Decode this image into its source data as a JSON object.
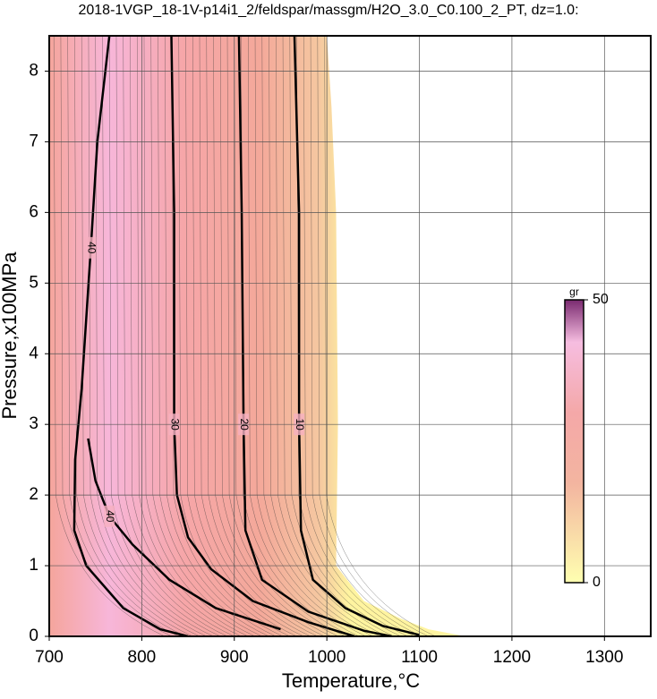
{
  "chart_data": {
    "type": "contour",
    "title": "2018-1VGP_18-1V-p14i1_2/feldspar/massgm/H2O_3.0_C0.100_2_PT, dz=1.0:",
    "x_label": "Temperature,°C",
    "y_label": "Pressure,x100MPa",
    "xlim": [
      700,
      1350
    ],
    "ylim": [
      0,
      8.5
    ],
    "xticks": [
      700,
      800,
      900,
      1000,
      1100,
      1200,
      1300
    ],
    "yticks": [
      0,
      1,
      2,
      3,
      4,
      5,
      6,
      7,
      8
    ],
    "grid": true,
    "region": {
      "x": [
        700,
        1000,
        1005,
        1010,
        1012,
        1010,
        1040,
        1080,
        1110,
        1150,
        700
      ],
      "y": [
        8.5,
        8.5,
        7.5,
        6,
        3,
        1,
        0.5,
        0.25,
        0.1,
        0,
        0
      ]
    },
    "contours": [
      {
        "level": 40,
        "x": [
          765,
          752,
          745,
          740,
          735,
          728,
          727,
          740,
          780,
          820,
          850
        ],
        "y": [
          8.5,
          7,
          5.5,
          4.5,
          3.5,
          2.5,
          1.5,
          1,
          0.4,
          0.1,
          0
        ]
      },
      {
        "level": 40,
        "x": [
          742,
          750,
          765,
          790,
          830,
          880,
          950
        ],
        "y": [
          2.8,
          2.2,
          1.7,
          1.3,
          0.8,
          0.4,
          0.1
        ]
      },
      {
        "level": 30,
        "x": [
          832,
          835,
          835,
          838,
          850,
          875,
          920,
          980,
          1030
        ],
        "y": [
          8.5,
          6,
          3,
          2,
          1.4,
          0.95,
          0.5,
          0.2,
          0
        ]
      },
      {
        "level": 20,
        "x": [
          905,
          908,
          910,
          912,
          930,
          980,
          1040,
          1070
        ],
        "y": [
          8.5,
          6,
          3,
          1.5,
          0.8,
          0.35,
          0.08,
          0
        ]
      },
      {
        "level": 10,
        "x": [
          965,
          970,
          970,
          972,
          985,
          1020,
          1060,
          1100
        ],
        "y": [
          8.5,
          6,
          3,
          1.5,
          0.8,
          0.4,
          0.15,
          0.02
        ]
      }
    ],
    "colorbar": {
      "label": "gr",
      "lim": [
        0,
        50
      ],
      "ticks": [
        0,
        50
      ]
    }
  }
}
